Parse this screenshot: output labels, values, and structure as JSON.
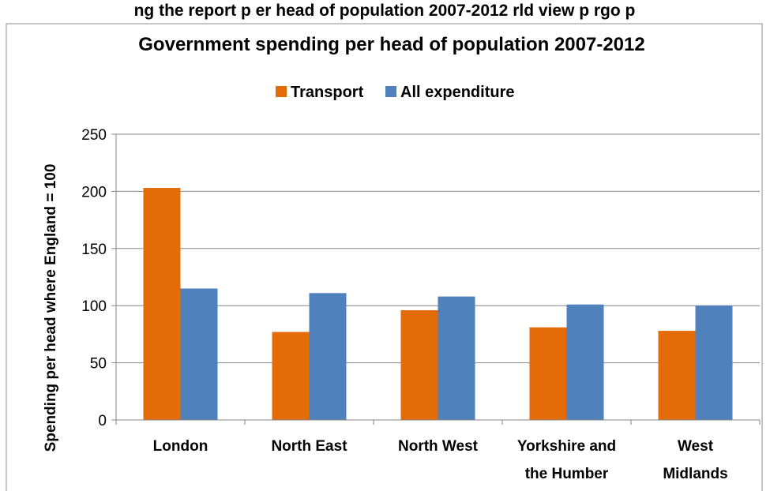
{
  "page_header": "ng the report p     er head of population 2007-2012   rld view p     rgo p",
  "chart_data": {
    "type": "bar",
    "title": "Government spending per head of population 2007-2012",
    "ylabel": "Spending per head where England = 100",
    "xlabel": "",
    "ylim": [
      0,
      250
    ],
    "yticks": [
      0,
      50,
      100,
      150,
      200,
      250
    ],
    "grid": true,
    "legend_position": "top",
    "categories": [
      [
        "London"
      ],
      [
        "North East"
      ],
      [
        "North West"
      ],
      [
        "Yorkshire and",
        "the Humber"
      ],
      [
        "West",
        "Midlands"
      ]
    ],
    "series": [
      {
        "name": "Transport",
        "color": "#E36C09",
        "values": [
          203,
          77,
          96,
          81,
          78
        ]
      },
      {
        "name": "All expenditure",
        "color": "#4F81BD",
        "values": [
          115,
          111,
          108,
          101,
          100
        ]
      }
    ]
  }
}
